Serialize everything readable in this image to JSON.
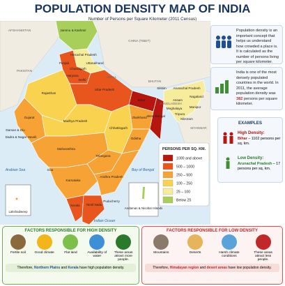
{
  "header": {
    "title": "POPULATION DENSITY MAP OF INDIA",
    "subtitle": "Number of Persons per Square Kilometer (2011 Census)"
  },
  "map": {
    "neighbors": [
      "AFGHANISTAN",
      "PAKISTAN",
      "CHINA (TIBET)",
      "NEPAL",
      "BHUTAN",
      "BANGLADESH",
      "MYANMAR"
    ],
    "water": [
      "Arabian Sea",
      "Bay of Bengal",
      "Indian Ocean"
    ],
    "states": [
      "Jammu & Kashmir",
      "Himachal Pradesh",
      "Punjab",
      "Chandigarh",
      "Uttarakhand",
      "Haryana",
      "Delhi",
      "Rajasthan",
      "Uttar Pradesh",
      "Sikkim",
      "Arunachal Pradesh",
      "Assam",
      "Nagaland",
      "Meghalaya",
      "Manipur",
      "Tripura",
      "Mizoram",
      "Bihar",
      "Jharkhand",
      "West Bengal",
      "Gujarat",
      "Madhya Pradesh",
      "Chhattisgarh",
      "Odisha",
      "Daman & Diu",
      "Dadra & Nagar Haveli",
      "Maharashtra",
      "Telangana",
      "Goa",
      "Andhra Pradesh",
      "Karnataka",
      "Tamil Nadu",
      "Puducherry",
      "Kerala"
    ],
    "islands": [
      "Lakshadweep",
      "Andaman & Nicobar Islands"
    ]
  },
  "legend": {
    "title": "PERSONS PER SQ. KM.",
    "items": [
      {
        "label": "1000 and above",
        "color": "#b5160f"
      },
      {
        "label": "500 – 1000",
        "color": "#e8561e"
      },
      {
        "label": "250 – 500",
        "color": "#f7a235"
      },
      {
        "label": "100 – 250",
        "color": "#f9d34f"
      },
      {
        "label": "25 – 100",
        "color": "#f7ec9c"
      },
      {
        "label": "Below 25",
        "color": "#a8cf5a"
      }
    ]
  },
  "info": {
    "concept": "Population density is an important concept that helps us understand how crowded a place is. It is calculated as the number of persons living per square kilometer.",
    "india": {
      "before": "India is one of the most densely populated countries in the world. In 2011, the average population density was",
      "value": "382",
      "after": "persons per square kilometer."
    }
  },
  "examples": {
    "title": "EXAMPLES",
    "high": {
      "heading": "High Density:",
      "state": "Bihar",
      "text": "– 1102 persons per sq. km."
    },
    "low": {
      "heading": "Low Density:",
      "state": "Arunachal Pradesh",
      "text": "– 17 persons per sq. km."
    }
  },
  "high_factors": {
    "title": "FACTORS RESPONSIBLE FOR HIGH DENSITY",
    "items": [
      "Fertile soil",
      "Good climate",
      "Flat land",
      "Availability of water",
      "These areas attract more people."
    ],
    "footer": [
      "Therefore, ",
      "Northern Plains",
      " and ",
      "Kerala",
      " have high population density."
    ]
  },
  "low_factors": {
    "title": "FACTORS RESPONSIBLE FOR LOW DENSITY",
    "items": [
      "Mountains",
      "Deserts",
      "Harsh climate conditions",
      "These areas attract less people."
    ],
    "footer": [
      "Therefore, ",
      "Himalayan region",
      " and ",
      "desert areas",
      " have low population density."
    ]
  }
}
